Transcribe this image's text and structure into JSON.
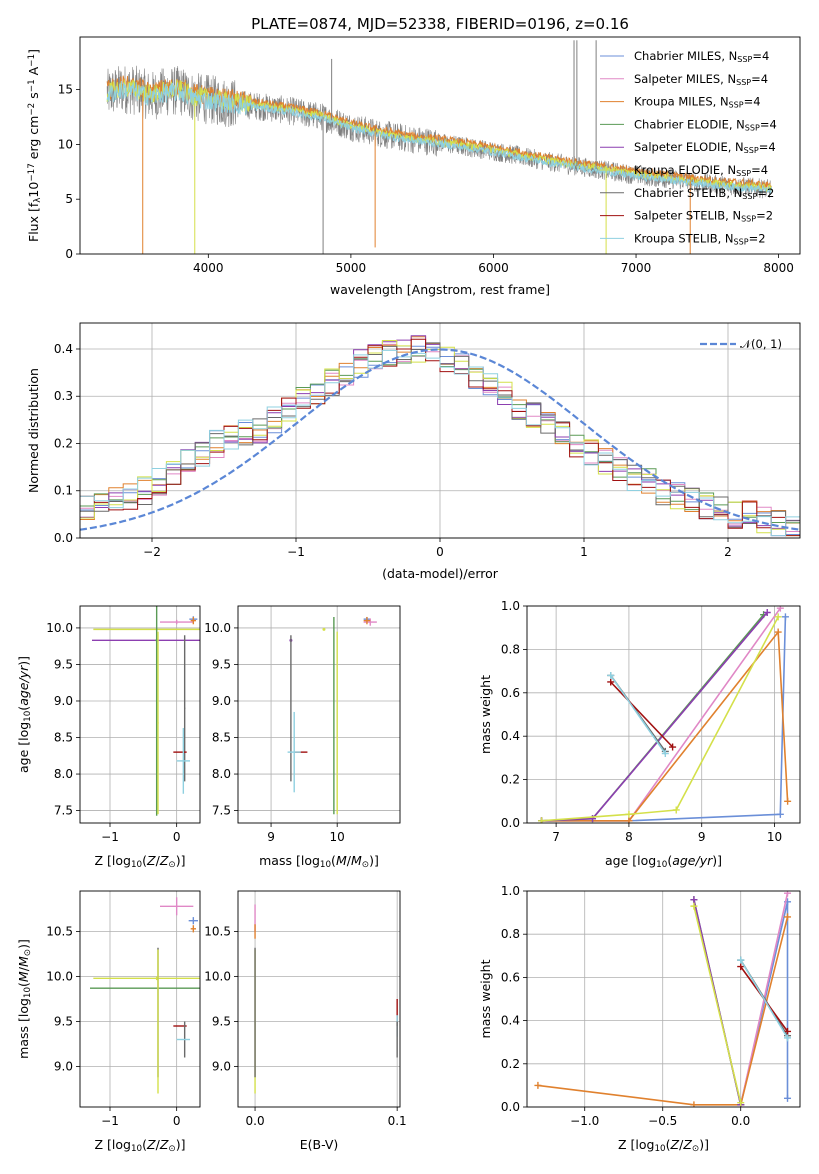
{
  "title": "PLATE=0874, MJD=52338, FIBERID=0196, z=0.16",
  "colors": {
    "Chabrier MILES": "#6b8fd8",
    "Salpeter MILES": "#e088c6",
    "Kroupa MILES": "#e0812e",
    "Chabrier ELODIE": "#5a9a55",
    "Salpeter ELODIE": "#8c3fb0",
    "Kroupa ELODIE": "#d4e04a",
    "Chabrier STELIB": "#6a6a6a",
    "Salpeter STELIB": "#a01010",
    "Kroupa STELIB": "#8fd0e0",
    "observed": "#808080",
    "normal": "#5b87d6"
  },
  "chart_data": [
    {
      "id": "spectrum",
      "type": "line",
      "xlabel": "wavelength [Angstrom, rest frame]",
      "ylabel": "Flux [f_λ10^-17 erg cm^-2 s^-1 A^-1]",
      "ylabel_parts": [
        "Flux [f",
        "λ",
        "10",
        "−17",
        " erg cm",
        "−2",
        " s",
        "−1",
        " A",
        "−1",
        "]"
      ],
      "xlim": [
        3100,
        8150
      ],
      "ylim": [
        0,
        19.8
      ],
      "xticks": [
        4000,
        5000,
        6000,
        7000,
        8000
      ],
      "yticks": [
        0,
        5,
        10,
        15
      ],
      "grid": false,
      "legend_position": "top-right",
      "legend": [
        {
          "name": "Chabrier MILES",
          "base": "Chabrier MILES, N",
          "sub": "SSP",
          "tail": "=4"
        },
        {
          "name": "Salpeter MILES",
          "base": "Salpeter MILES, N",
          "sub": "SSP",
          "tail": "=4"
        },
        {
          "name": "Kroupa MILES",
          "base": "Kroupa MILES, N",
          "sub": "SSP",
          "tail": "=4"
        },
        {
          "name": "Chabrier ELODIE",
          "base": "Chabrier ELODIE, N",
          "sub": "SSP",
          "tail": "=4"
        },
        {
          "name": "Salpeter ELODIE",
          "base": "Salpeter ELODIE, N",
          "sub": "SSP",
          "tail": "=4"
        },
        {
          "name": "Kroupa ELODIE",
          "base": "Kroupa ELODIE, N",
          "sub": "SSP",
          "tail": "=4"
        },
        {
          "name": "Chabrier STELIB",
          "base": "Chabrier STELIB, N",
          "sub": "SSP",
          "tail": "=2"
        },
        {
          "name": "Salpeter STELIB",
          "base": "Salpeter STELIB, N",
          "sub": "SSP",
          "tail": "=2"
        },
        {
          "name": "Kroupa STELIB",
          "base": "Kroupa STELIB, N",
          "sub": "SSP",
          "tail": "=2"
        }
      ],
      "continuum": [
        [
          3290,
          14.6
        ],
        [
          3400,
          15.1
        ],
        [
          3500,
          14.9
        ],
        [
          3600,
          14.4
        ],
        [
          3700,
          14.8
        ],
        [
          3800,
          14.9
        ],
        [
          3900,
          14.3
        ],
        [
          4000,
          14.1
        ],
        [
          4200,
          13.7
        ],
        [
          4400,
          13.4
        ],
        [
          4600,
          13.0
        ],
        [
          4800,
          12.5
        ],
        [
          5000,
          11.6
        ],
        [
          5200,
          11.0
        ],
        [
          5400,
          10.5
        ],
        [
          5600,
          10.2
        ],
        [
          5800,
          9.8
        ],
        [
          6000,
          9.4
        ],
        [
          6200,
          8.9
        ],
        [
          6400,
          8.4
        ],
        [
          6600,
          8.0
        ],
        [
          6800,
          7.6
        ],
        [
          7000,
          7.2
        ],
        [
          7200,
          6.9
        ],
        [
          7400,
          6.6
        ],
        [
          7600,
          6.3
        ],
        [
          7800,
          6.1
        ],
        [
          7950,
          5.9
        ]
      ],
      "features": [
        {
          "x": 3540,
          "y": 0,
          "series": "Kroupa MILES"
        },
        {
          "x": 3905,
          "y": 0,
          "series": "Kroupa ELODIE"
        },
        {
          "x": 4805,
          "y": 0,
          "series": "observed"
        },
        {
          "x": 5170,
          "y": 0.6,
          "series": "Kroupa MILES"
        },
        {
          "x": 6790,
          "y": 0,
          "series": "Kroupa ELODIE"
        },
        {
          "x": 7380,
          "y": 0,
          "series": "Kroupa MILES"
        },
        {
          "x": 4865,
          "y": 17.8,
          "series": "observed"
        },
        {
          "x": 6565,
          "y": 19.5,
          "series": "observed"
        },
        {
          "x": 6585,
          "y": 19.5,
          "series": "observed"
        },
        {
          "x": 6720,
          "y": 19.5,
          "series": "observed"
        }
      ]
    },
    {
      "id": "residuals",
      "type": "histogram",
      "xlabel": "(data-model)/error",
      "ylabel": "Normed distribution",
      "xlim": [
        -2.5,
        2.5
      ],
      "ylim": [
        0,
        0.455
      ],
      "xticks": [
        -2,
        -1,
        0,
        1,
        2
      ],
      "yticks": [
        0,
        0.1,
        0.2,
        0.3,
        0.4
      ],
      "grid": true,
      "legend_position": "top-right",
      "reference": {
        "label": "𝒩(0, 1)",
        "mean": 0,
        "sigma": 1
      },
      "bin_start": -2.5,
      "bin_width": 0.1,
      "profile": [
        0.06,
        0.07,
        0.08,
        0.09,
        0.1,
        0.12,
        0.14,
        0.16,
        0.18,
        0.2,
        0.21,
        0.22,
        0.23,
        0.25,
        0.27,
        0.29,
        0.31,
        0.33,
        0.35,
        0.37,
        0.38,
        0.39,
        0.4,
        0.4,
        0.39,
        0.38,
        0.36,
        0.34,
        0.32,
        0.3,
        0.28,
        0.26,
        0.24,
        0.22,
        0.2,
        0.18,
        0.16,
        0.15,
        0.13,
        0.12,
        0.1,
        0.09,
        0.08,
        0.07,
        0.06,
        0.05,
        0.05,
        0.04,
        0.03,
        0.02
      ]
    },
    {
      "id": "age-vs-Z",
      "type": "errorbar",
      "xlabel": "Z [log10(Z/Z⊙)]",
      "ylabel": "age [log10(age/yr)]",
      "xlim": [
        -1.45,
        0.35
      ],
      "ylim": [
        7.33,
        10.3
      ],
      "xticks": [
        -1,
        0
      ],
      "yticks": [
        7.5,
        8.0,
        8.5,
        9.0,
        9.5,
        10.0
      ],
      "grid": true,
      "points": [
        {
          "series": "Chabrier MILES",
          "x": 0.25,
          "y": 10.12,
          "xerr": 0.06,
          "yerr": 0.04
        },
        {
          "series": "Salpeter MILES",
          "x": 0.0,
          "y": 10.08,
          "xerr": 0.25,
          "yerr": 0.03
        },
        {
          "series": "Kroupa MILES",
          "x": 0.25,
          "y": 10.1,
          "xerr": 0.04,
          "yerr": 0.05
        },
        {
          "series": "Kroupa ELODIE",
          "x": -0.3,
          "y": 9.98,
          "xerr": 0.95,
          "yerr": 0.02
        },
        {
          "series": "Salpeter ELODIE",
          "x": -0.3,
          "y": 9.83,
          "xerr": 0.97,
          "yerr": 0.02
        },
        {
          "series": "Chabrier ELODIE",
          "x": -0.3,
          "y": 9.83,
          "xerr": 0.02,
          "yerr": 2.4
        },
        {
          "series": "Kroupa ELODIE",
          "x": -0.28,
          "y": 8.7,
          "xerr": 0.01,
          "yerr": 1.25
        },
        {
          "series": "Chabrier STELIB",
          "x": 0.12,
          "y": 8.9,
          "xerr": 0.01,
          "yerr": 1.0
        },
        {
          "series": "Salpeter STELIB",
          "x": 0.05,
          "y": 8.3,
          "xerr": 0.1,
          "yerr": 0.0
        },
        {
          "series": "Kroupa STELIB",
          "x": 0.1,
          "y": 8.18,
          "xerr": 0.1,
          "yerr": 0.45
        }
      ]
    },
    {
      "id": "age-vs-mass",
      "type": "errorbar",
      "xlabel": "mass [log10(M/M⊙)]",
      "ylabel": "",
      "xlim": [
        8.5,
        10.95
      ],
      "ylim": [
        7.33,
        10.3
      ],
      "xticks": [
        9,
        10
      ],
      "yticks": [
        7.5,
        8.0,
        8.5,
        9.0,
        9.5,
        10.0
      ],
      "grid": true,
      "points": [
        {
          "series": "Chabrier MILES",
          "x": 10.45,
          "y": 10.12,
          "xerr": 0.05,
          "yerr": 0.03
        },
        {
          "series": "Salpeter MILES",
          "x": 10.5,
          "y": 10.08,
          "xerr": 0.1,
          "yerr": 0.05
        },
        {
          "series": "Kroupa MILES",
          "x": 10.45,
          "y": 10.1,
          "xerr": 0.05,
          "yerr": 0.05
        },
        {
          "series": "Kroupa ELODIE",
          "x": 9.8,
          "y": 9.98,
          "xerr": 0.0,
          "yerr": 0.0
        },
        {
          "series": "Salpeter ELODIE",
          "x": 9.3,
          "y": 9.83,
          "xerr": 0.0,
          "yerr": 0.0
        },
        {
          "series": "Chabrier ELODIE",
          "x": 9.95,
          "y": 8.8,
          "xerr": 0.0,
          "yerr": 1.35
        },
        {
          "series": "Kroupa ELODIE",
          "x": 10.0,
          "y": 8.7,
          "xerr": 0.0,
          "yerr": 1.25
        },
        {
          "series": "Salpeter STELIB",
          "x": 9.45,
          "y": 8.3,
          "xerr": 0.1,
          "yerr": 0.0
        },
        {
          "series": "Chabrier STELIB",
          "x": 9.3,
          "y": 8.9,
          "xerr": 0.0,
          "yerr": 1.0
        },
        {
          "series": "Kroupa STELIB",
          "x": 9.35,
          "y": 8.3,
          "xerr": 0.1,
          "yerr": 0.55
        }
      ]
    },
    {
      "id": "weight-vs-age",
      "type": "line",
      "xlabel": "age [log10(age/yr)]",
      "ylabel": "mass weight",
      "xlim": [
        6.6,
        10.35
      ],
      "ylim": [
        0,
        1.0
      ],
      "xticks": [
        7,
        8,
        9,
        10
      ],
      "yticks": [
        0,
        0.2,
        0.4,
        0.6,
        0.8,
        1.0
      ],
      "grid": true,
      "series": [
        {
          "name": "Chabrier MILES",
          "x": [
            6.8,
            8.0,
            10.08,
            10.15
          ],
          "y": [
            0.01,
            0.01,
            0.04,
            0.95
          ]
        },
        {
          "name": "Salpeter MILES",
          "x": [
            6.8,
            8.0,
            10.08
          ],
          "y": [
            0.01,
            0.01,
            0.99
          ]
        },
        {
          "name": "Kroupa MILES",
          "x": [
            6.8,
            8.0,
            10.05,
            10.18
          ],
          "y": [
            0.01,
            0.01,
            0.88,
            0.1
          ]
        },
        {
          "name": "Chabrier ELODIE",
          "x": [
            6.8,
            7.5,
            9.85
          ],
          "y": [
            0.01,
            0.02,
            0.96
          ]
        },
        {
          "name": "Salpeter ELODIE",
          "x": [
            6.8,
            7.5,
            9.9
          ],
          "y": [
            0.01,
            0.02,
            0.97
          ]
        },
        {
          "name": "Kroupa ELODIE",
          "x": [
            6.8,
            8.0,
            8.65,
            10.05
          ],
          "y": [
            0.01,
            0.04,
            0.06,
            0.95
          ]
        },
        {
          "name": "Chabrier STELIB",
          "x": [
            7.75,
            8.5
          ],
          "y": [
            0.68,
            0.33
          ]
        },
        {
          "name": "Salpeter STELIB",
          "x": [
            7.75,
            8.6
          ],
          "y": [
            0.65,
            0.35
          ]
        },
        {
          "name": "Kroupa STELIB",
          "x": [
            7.75,
            8.5
          ],
          "y": [
            0.68,
            0.32
          ]
        }
      ]
    },
    {
      "id": "mass-vs-Z",
      "type": "errorbar",
      "xlabel": "Z [log10(Z/Z⊙)]",
      "ylabel": "mass [log10(M/M⊙)]",
      "xlim": [
        -1.45,
        0.35
      ],
      "ylim": [
        8.55,
        10.95
      ],
      "xticks": [
        -1,
        0
      ],
      "yticks": [
        9.0,
        9.5,
        10.0,
        10.5
      ],
      "grid": true,
      "points": [
        {
          "series": "Salpeter MILES",
          "x": 0.0,
          "y": 10.78,
          "xerr": 0.25,
          "yerr": 0.1
        },
        {
          "series": "Chabrier MILES",
          "x": 0.25,
          "y": 10.62,
          "xerr": 0.07,
          "yerr": 0.04
        },
        {
          "series": "Kroupa MILES",
          "x": 0.25,
          "y": 10.53,
          "xerr": 0.04,
          "yerr": 0.04
        },
        {
          "series": "Kroupa ELODIE",
          "x": -0.3,
          "y": 9.98,
          "xerr": 0.95,
          "yerr": 0.02
        },
        {
          "series": "Chabrier ELODIE",
          "x": -0.3,
          "y": 9.87,
          "xerr": 1.0,
          "yerr": 0.0
        },
        {
          "series": "Chabrier STELIB",
          "x": -0.28,
          "y": 9.6,
          "xerr": 0.0,
          "yerr": 0.72
        },
        {
          "series": "Kroupa ELODIE",
          "x": -0.28,
          "y": 9.5,
          "xerr": 0.0,
          "yerr": 0.8
        },
        {
          "series": "Salpeter STELIB",
          "x": 0.05,
          "y": 9.45,
          "xerr": 0.1,
          "yerr": 0.0
        },
        {
          "series": "Chabrier STELIB",
          "x": 0.12,
          "y": 9.3,
          "xerr": 0.0,
          "yerr": 0.2
        },
        {
          "series": "Kroupa STELIB",
          "x": 0.1,
          "y": 9.3,
          "xerr": 0.1,
          "yerr": 0.0
        }
      ]
    },
    {
      "id": "mass-vs-ebv",
      "type": "errorbar",
      "xlabel": "E(B-V)",
      "ylabel": "",
      "xlim": [
        -0.012,
        0.102
      ],
      "ylim": [
        8.55,
        10.95
      ],
      "xticks": [
        0.0,
        0.1
      ],
      "yticks": [
        9.0,
        9.5,
        10.0,
        10.5
      ],
      "grid": true,
      "points": [
        {
          "series": "Salpeter MILES",
          "x": 0.0,
          "y": 10.65,
          "xerr": 0.0,
          "yerr": 0.15
        },
        {
          "series": "Kroupa MILES",
          "x": 0.0,
          "y": 10.5,
          "xerr": 0.0,
          "yerr": 0.08
        },
        {
          "series": "Kroupa ELODIE",
          "x": 0.0,
          "y": 9.5,
          "xerr": 0.0,
          "yerr": 0.8
        },
        {
          "series": "Chabrier STELIB",
          "x": 0.0,
          "y": 9.6,
          "xerr": 0.0,
          "yerr": 0.72
        },
        {
          "series": "Salpeter STELIB",
          "x": 0.1,
          "y": 9.6,
          "xerr": 0.0,
          "yerr": 0.15
        },
        {
          "series": "Kroupa STELIB",
          "x": 0.1,
          "y": 9.45,
          "xerr": 0.0,
          "yerr": 0.12
        },
        {
          "series": "Chabrier STELIB",
          "x": 0.1,
          "y": 9.3,
          "xerr": 0.0,
          "yerr": 0.2
        }
      ]
    },
    {
      "id": "weight-vs-Z",
      "type": "line",
      "xlabel": "Z [log10(Z/Z⊙)]",
      "ylabel": "mass weight",
      "xlim": [
        -1.37,
        0.38
      ],
      "ylim": [
        0,
        1.0
      ],
      "xticks": [
        -1.0,
        -0.5,
        0.0
      ],
      "yticks": [
        0,
        0.2,
        0.4,
        0.6,
        0.8,
        1.0
      ],
      "grid": true,
      "series": [
        {
          "name": "Chabrier MILES",
          "x": [
            0.0,
            0.3,
            0.3
          ],
          "y": [
            0.01,
            0.95,
            0.04
          ]
        },
        {
          "name": "Salpeter MILES",
          "x": [
            0.0,
            0.3
          ],
          "y": [
            0.01,
            0.99
          ]
        },
        {
          "name": "Kroupa MILES",
          "x": [
            -1.3,
            -0.3,
            0.0,
            0.3
          ],
          "y": [
            0.1,
            0.01,
            0.01,
            0.88
          ]
        },
        {
          "name": "Chabrier ELODIE",
          "x": [
            -0.3,
            0.0
          ],
          "y": [
            0.96,
            0.01
          ]
        },
        {
          "name": "Salpeter ELODIE",
          "x": [
            -0.3,
            0.0
          ],
          "y": [
            0.96,
            0.01
          ]
        },
        {
          "name": "Kroupa ELODIE",
          "x": [
            -0.3,
            0.0
          ],
          "y": [
            0.93,
            0.02
          ]
        },
        {
          "name": "Chabrier STELIB",
          "x": [
            0.0,
            0.3
          ],
          "y": [
            0.68,
            0.33
          ]
        },
        {
          "name": "Salpeter STELIB",
          "x": [
            0.0,
            0.3
          ],
          "y": [
            0.65,
            0.35
          ]
        },
        {
          "name": "Kroupa STELIB",
          "x": [
            0.0,
            0.3
          ],
          "y": [
            0.68,
            0.32
          ]
        }
      ]
    }
  ]
}
